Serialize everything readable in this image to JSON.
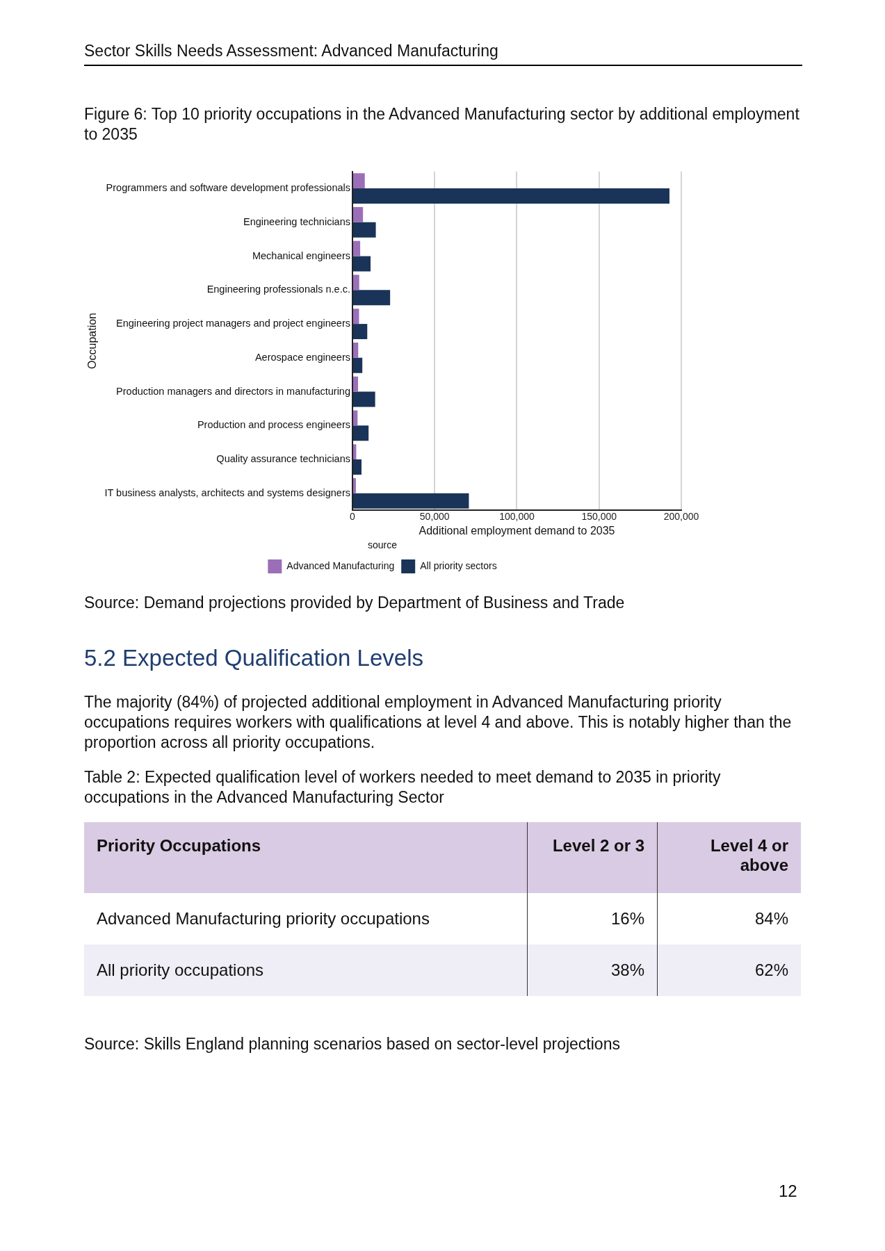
{
  "chart_data": [
    {
      "type": "bar",
      "orientation": "horizontal",
      "title": "Figure 6: Top 10 priority occupations in the Advanced Manufacturing sector by additional employment to 2035",
      "categories": [
        "Programmers and software development professionals",
        "Engineering technicians",
        "Mechanical engineers",
        "Engineering professionals n.e.c.",
        "Engineering project managers and project engineers",
        "Aerospace engineers",
        "Production managers and directors in manufacturing",
        "Production and process engineers",
        "Quality assurance technicians",
        "IT business analysts, architects and systems designers"
      ],
      "series": [
        {
          "name": "Advanced Manufacturing",
          "color": "#9b6fb8",
          "values": [
            7500,
            6400,
            4700,
            4100,
            4000,
            3500,
            3400,
            3100,
            2300,
            2100
          ]
        },
        {
          "name": "All priority sectors",
          "color": "#1a3358",
          "values": [
            192800,
            14200,
            11000,
            22900,
            9000,
            6000,
            13800,
            9800,
            5500,
            70800
          ]
        }
      ],
      "xlabel": "Additional employment demand to 2035",
      "ylabel": "Occupation",
      "legend_title": "source",
      "legend": "bottom",
      "grid": "x",
      "xlim": [
        0,
        200000
      ],
      "xticks": [
        {
          "value": 0,
          "label": "0"
        },
        {
          "value": 50000,
          "label": "50,000"
        },
        {
          "value": 100000,
          "label": "100,000"
        },
        {
          "value": 150000,
          "label": "150,000"
        },
        {
          "value": 200000,
          "label": "200,000"
        }
      ],
      "annotations": [
        "Sector Skills Needs Assessment: Advanced Manufacturing",
        "Source: Demand projections provided by Department of Business and Trade"
      ]
    },
    {
      "type": "other",
      "title": "5.2 Expected Qualification Levels",
      "annotations": [
        "The majority (84%) of projected additional employment in Advanced Manufacturing priority occupations requires workers with qualifications at level 4 and above. This is notably higher than the proportion across all priority occupations.",
        "Table 2: Expected qualification level of workers needed to meet demand to 2035 in priority occupations in the Advanced Manufacturing Sector",
        "Priority Occupations",
        "Level 2 or 3",
        "Level 4 or above",
        "Advanced Manufacturing priority occupations",
        "16%",
        "84%",
        "All priority occupations",
        "38%",
        "62%",
        "Source: Skills England planning scenarios based on sector-level projections",
        "12"
      ]
    }
  ]
}
